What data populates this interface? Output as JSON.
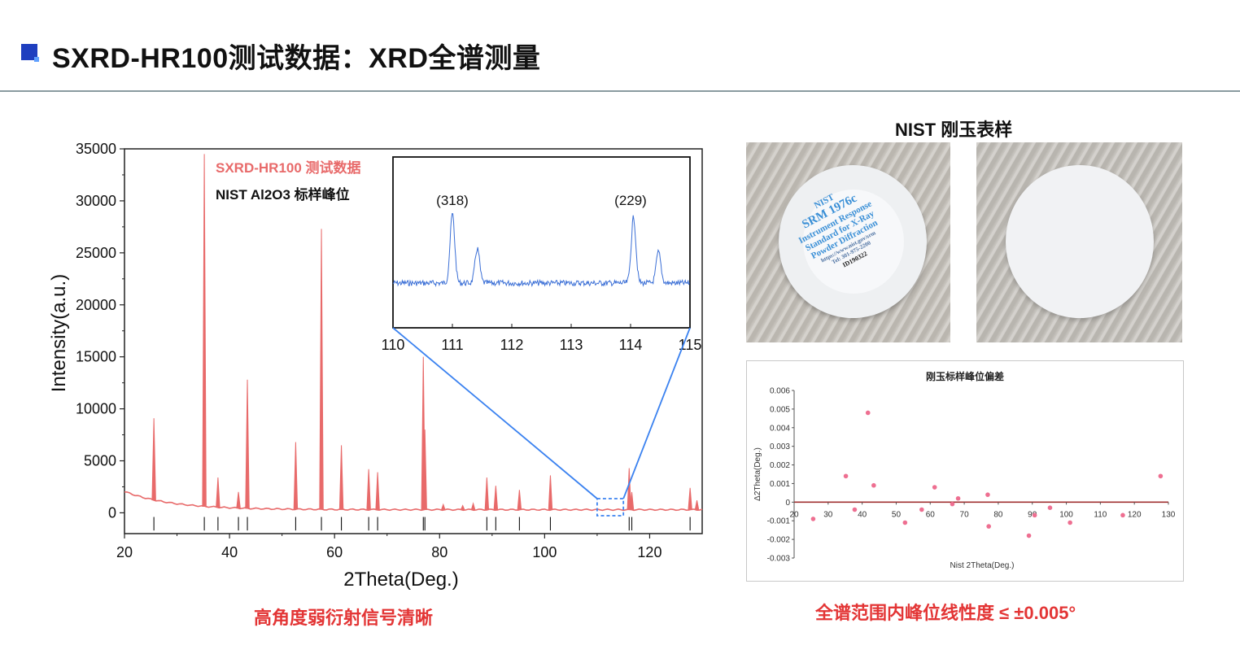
{
  "header": {
    "title": "SXRD-HR100测试数据：XRD全谱测量"
  },
  "captions": {
    "left": "高角度弱衍射信号清晰",
    "right": "全谱范围内峰位线性度 ≤ ±0.005°"
  },
  "photos": {
    "title": "NIST 刚玉表样",
    "label_logo": "NIST",
    "label_srm": "SRM 1976c",
    "label_lines": [
      "Instrument Response",
      "Standard for X-Ray",
      "Powder Diffraction"
    ],
    "label_url": "https://www.nist.gov/srm",
    "label_tel": "Tel: 301-975-2200",
    "label_id": "ID190322"
  },
  "colors": {
    "accent_blue": "#1f3fbf",
    "caption_red": "#e33535",
    "xrd_red": "#e86a6a",
    "inset_blue": "#3b6fd6",
    "zoom_line_blue": "#3b82f0",
    "point_pink": "#ee6f91"
  },
  "chart_data": [
    {
      "type": "line",
      "title": "",
      "xlabel": "2Theta(Deg.)",
      "ylabel": "Intensity(a.u.)",
      "xlim": [
        20,
        130
      ],
      "ylim": [
        -2000,
        35000
      ],
      "xticks": [
        20,
        40,
        60,
        80,
        100,
        120
      ],
      "yticks": [
        0,
        5000,
        10000,
        15000,
        20000,
        25000,
        30000,
        35000
      ],
      "legend": [
        "SXRD-HR100 测试数据",
        "NIST Al2O3 标样峰位"
      ],
      "series_name": "SXRD-HR100 测试数据",
      "peaks": [
        {
          "x": 25.6,
          "y": 9100
        },
        {
          "x": 35.2,
          "y": 34500
        },
        {
          "x": 37.8,
          "y": 3400
        },
        {
          "x": 41.7,
          "y": 2000
        },
        {
          "x": 43.4,
          "y": 12800
        },
        {
          "x": 52.6,
          "y": 6800
        },
        {
          "x": 57.5,
          "y": 27300
        },
        {
          "x": 61.3,
          "y": 6500
        },
        {
          "x": 66.5,
          "y": 4200
        },
        {
          "x": 68.2,
          "y": 3900
        },
        {
          "x": 76.9,
          "y": 15000
        },
        {
          "x": 77.2,
          "y": 8000
        },
        {
          "x": 80.7,
          "y": 800
        },
        {
          "x": 84.4,
          "y": 700
        },
        {
          "x": 86.4,
          "y": 900
        },
        {
          "x": 89.0,
          "y": 3400
        },
        {
          "x": 90.7,
          "y": 2600
        },
        {
          "x": 95.2,
          "y": 2200
        },
        {
          "x": 101.1,
          "y": 3600
        },
        {
          "x": 116.1,
          "y": 4300
        },
        {
          "x": 116.6,
          "y": 2000
        },
        {
          "x": 127.7,
          "y": 2400
        },
        {
          "x": 129.0,
          "y": 1200
        }
      ],
      "reference_positions": [
        25.6,
        35.2,
        37.8,
        41.7,
        43.4,
        52.6,
        57.5,
        61.3,
        66.5,
        68.2,
        76.9,
        77.2,
        89.0,
        90.7,
        95.2,
        101.1,
        116.1,
        116.6,
        127.7
      ],
      "zoom_region": [
        110,
        115
      ],
      "inset": {
        "xlim": [
          110,
          115
        ],
        "xticks": [
          110,
          111,
          112,
          113,
          114,
          115
        ],
        "annotations": [
          {
            "text": "(318)",
            "x": 111.0
          },
          {
            "text": "(229)",
            "x": 114.0
          }
        ],
        "peaks": [
          {
            "x": 111.0,
            "height": 1.0
          },
          {
            "x": 111.42,
            "height": 0.5
          },
          {
            "x": 114.05,
            "height": 0.95
          },
          {
            "x": 114.47,
            "height": 0.45
          }
        ]
      }
    },
    {
      "type": "scatter",
      "title": "刚玉标样峰位偏差",
      "xlabel": "Nist 2Theta(Deg.)",
      "ylabel": "Δ2Theta(Deg.)",
      "xlim": [
        20,
        130
      ],
      "ylim": [
        -0.003,
        0.006
      ],
      "xticks": [
        20,
        30,
        40,
        50,
        60,
        70,
        80,
        90,
        100,
        110,
        120,
        130
      ],
      "yticks": [
        -0.003,
        -0.002,
        -0.001,
        0,
        0.001,
        0.002,
        0.003,
        0.004,
        0.005,
        0.006
      ],
      "points": [
        {
          "x": 25.6,
          "y": -0.0009
        },
        {
          "x": 35.2,
          "y": 0.0014
        },
        {
          "x": 37.8,
          "y": -0.0004
        },
        {
          "x": 41.7,
          "y": 0.0048
        },
        {
          "x": 43.4,
          "y": 0.0009
        },
        {
          "x": 52.6,
          "y": -0.0011
        },
        {
          "x": 57.5,
          "y": -0.0004
        },
        {
          "x": 61.3,
          "y": 0.0008
        },
        {
          "x": 66.5,
          "y": -0.0001
        },
        {
          "x": 68.2,
          "y": 0.0002
        },
        {
          "x": 76.9,
          "y": 0.0004
        },
        {
          "x": 77.2,
          "y": -0.0013
        },
        {
          "x": 89.0,
          "y": -0.0018
        },
        {
          "x": 90.7,
          "y": -0.0007
        },
        {
          "x": 95.2,
          "y": -0.0003
        },
        {
          "x": 101.1,
          "y": -0.0011
        },
        {
          "x": 116.6,
          "y": -0.0007
        },
        {
          "x": 127.7,
          "y": 0.0014
        }
      ]
    }
  ]
}
